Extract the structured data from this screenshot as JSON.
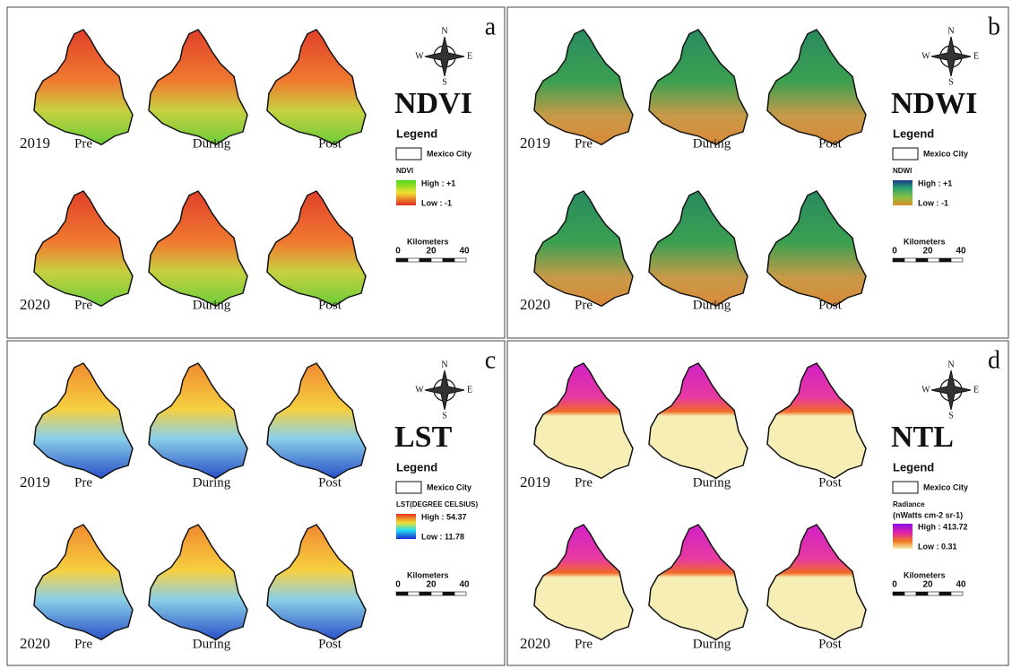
{
  "panels": [
    {
      "letter": "a",
      "title": "NDVI",
      "rows": [
        {
          "year": "2019",
          "periods": [
            "Pre",
            "During",
            "Post"
          ]
        },
        {
          "year": "2020",
          "periods": [
            "Pre",
            "During",
            "Post"
          ]
        }
      ],
      "legend": {
        "heading": "Legend",
        "boundary": "Mexico City",
        "ramp_title": "NDVI",
        "high": "High : +1",
        "low": "Low : -1"
      },
      "scale": {
        "title": "Kilometers",
        "ticks": [
          0,
          20,
          40
        ]
      },
      "compass": {
        "n": "N",
        "e": "E",
        "s": "S",
        "w": "W"
      }
    },
    {
      "letter": "b",
      "title": "NDWI",
      "rows": [
        {
          "year": "2019",
          "periods": [
            "Pre",
            "During",
            "Post"
          ]
        },
        {
          "year": "2020",
          "periods": [
            "Pre",
            "During",
            "Post"
          ]
        }
      ],
      "legend": {
        "heading": "Legend",
        "boundary": "Mexico City",
        "ramp_title": "NDWI",
        "high": "High : +1",
        "low": "Low : -1"
      },
      "scale": {
        "title": "Kilometers",
        "ticks": [
          0,
          20,
          40
        ]
      },
      "compass": {
        "n": "N",
        "e": "E",
        "s": "S",
        "w": "W"
      }
    },
    {
      "letter": "c",
      "title": "LST",
      "rows": [
        {
          "year": "2019",
          "periods": [
            "Pre",
            "During",
            "Post"
          ]
        },
        {
          "year": "2020",
          "periods": [
            "Pre",
            "During",
            "Post"
          ]
        }
      ],
      "legend": {
        "heading": "Legend",
        "boundary": "Mexico City",
        "ramp_title": "LST(DEGREE CELSIUS)",
        "high": "High : 54.37",
        "low": "Low : 11.78"
      },
      "scale": {
        "title": "Kilometers",
        "ticks": [
          0,
          20,
          40
        ]
      },
      "compass": {
        "n": "N",
        "e": "E",
        "s": "S",
        "w": "W"
      }
    },
    {
      "letter": "d",
      "title": "NTL",
      "rows": [
        {
          "year": "2019",
          "periods": [
            "Pre",
            "During",
            "Post"
          ]
        },
        {
          "year": "2020",
          "periods": [
            "Pre",
            "During",
            "Post"
          ]
        }
      ],
      "legend": {
        "heading": "Legend",
        "boundary": "Mexico City",
        "ramp_title": "Radiance",
        "ramp_subtitle": "(nWatts cm-2 sr-1)",
        "high": "High : 413.72",
        "low": "Low : 0.31"
      },
      "scale": {
        "title": "Kilometers",
        "ticks": [
          0,
          20,
          40
        ]
      },
      "compass": {
        "n": "N",
        "e": "E",
        "s": "S",
        "w": "W"
      }
    }
  ]
}
